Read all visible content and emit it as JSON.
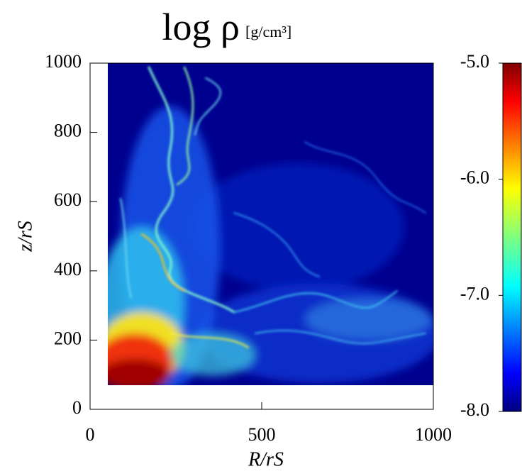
{
  "chart_data": {
    "type": "heatmap",
    "title": "log ρ",
    "title_unit": "[g/cm³]",
    "xlabel": "R/rS",
    "ylabel": "z/rS",
    "xlim": [
      0,
      1000
    ],
    "xticks": [
      0,
      500,
      1000
    ],
    "ylim": [
      0,
      1000
    ],
    "yticks": [
      0,
      200,
      400,
      600,
      800,
      1000
    ],
    "colorbar": {
      "colormap": "jet",
      "lim": [
        -8.0,
        -5.0
      ],
      "ticks": [
        {
          "value": -5.0,
          "label": "-5.0"
        },
        {
          "value": -6.0,
          "label": "-6.0"
        },
        {
          "value": -7.0,
          "label": "-7.0"
        },
        {
          "value": -8.0,
          "label": "-8.0"
        }
      ]
    }
  }
}
